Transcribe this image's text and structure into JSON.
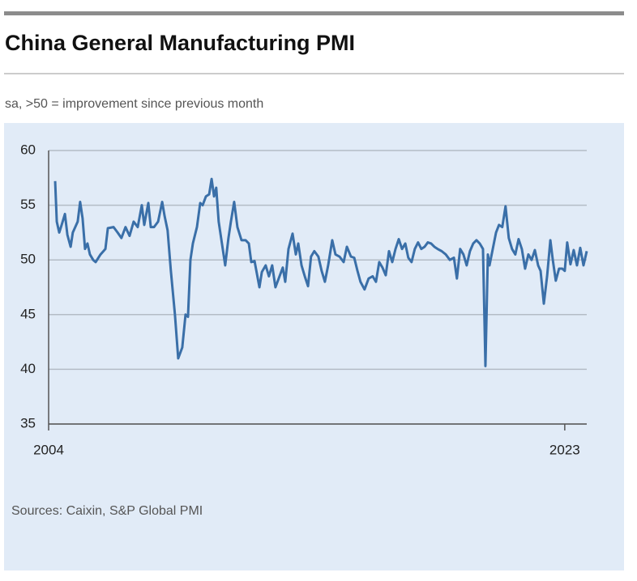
{
  "chart_data": {
    "type": "line",
    "title": "China General Manufacturing PMI",
    "subtitle": "sa, >50 = improvement since previous month",
    "source": "Sources: Caixin, S&P Global PMI",
    "color": "#3a6fa8",
    "grid": true,
    "xlim": [
      2004,
      2023.81
    ],
    "xticks": [
      2004,
      2023
    ],
    "ylim": [
      35,
      60
    ],
    "yticks": [
      35,
      40,
      45,
      50,
      55,
      60
    ],
    "x": [
      2004.24,
      2004.3,
      2004.39,
      2004.48,
      2004.6,
      2004.69,
      2004.81,
      2004.89,
      2005.07,
      2005.16,
      2005.25,
      2005.34,
      2005.43,
      2005.52,
      2005.64,
      2005.73,
      2005.91,
      2006.09,
      2006.18,
      2006.39,
      2006.54,
      2006.68,
      2006.83,
      2006.98,
      2007.13,
      2007.28,
      2007.43,
      2007.52,
      2007.67,
      2007.76,
      2007.88,
      2008.03,
      2008.18,
      2008.27,
      2008.38,
      2008.5,
      2008.65,
      2008.77,
      2008.92,
      2009.04,
      2009.13,
      2009.22,
      2009.31,
      2009.46,
      2009.58,
      2009.67,
      2009.79,
      2009.91,
      2010.0,
      2010.09,
      2010.17,
      2010.26,
      2010.38,
      2010.5,
      2010.62,
      2010.71,
      2010.83,
      2010.95,
      2011.1,
      2011.25,
      2011.37,
      2011.46,
      2011.58,
      2011.76,
      2011.85,
      2011.99,
      2012.11,
      2012.23,
      2012.35,
      2012.5,
      2012.62,
      2012.71,
      2012.83,
      2012.98,
      2013.1,
      2013.19,
      2013.31,
      2013.43,
      2013.55,
      2013.66,
      2013.78,
      2013.93,
      2014.05,
      2014.17,
      2014.29,
      2014.44,
      2014.56,
      2014.71,
      2014.86,
      2014.98,
      2015.13,
      2015.25,
      2015.37,
      2015.48,
      2015.63,
      2015.78,
      2015.93,
      2016.05,
      2016.17,
      2016.29,
      2016.41,
      2016.53,
      2016.65,
      2016.77,
      2016.89,
      2017.01,
      2017.13,
      2017.24,
      2017.36,
      2017.48,
      2017.6,
      2017.72,
      2017.84,
      2017.96,
      2018.08,
      2018.2,
      2018.32,
      2018.47,
      2018.62,
      2018.77,
      2018.92,
      2019.03,
      2019.15,
      2019.27,
      2019.39,
      2019.51,
      2019.63,
      2019.75,
      2019.87,
      2019.99,
      2020.08,
      2020.17,
      2020.23,
      2020.35,
      2020.47,
      2020.58,
      2020.7,
      2020.82,
      2020.94,
      2021.06,
      2021.18,
      2021.3,
      2021.42,
      2021.54,
      2021.66,
      2021.78,
      2021.9,
      2022.02,
      2022.11,
      2022.23,
      2022.35,
      2022.47,
      2022.56,
      2022.67,
      2022.79,
      2022.91,
      2023.0,
      2023.09,
      2023.21,
      2023.33,
      2023.45,
      2023.57,
      2023.69,
      2023.81
    ],
    "values": [
      57.2,
      53.5,
      52.5,
      53.2,
      54.2,
      52.3,
      51.2,
      52.5,
      53.5,
      55.3,
      53.8,
      51.0,
      51.5,
      50.5,
      50.0,
      49.8,
      50.5,
      51.0,
      52.9,
      53.0,
      52.5,
      52.0,
      53.0,
      52.2,
      53.5,
      53.0,
      55.0,
      53.2,
      55.2,
      53.0,
      53.0,
      53.5,
      55.3,
      54.0,
      52.7,
      49.0,
      45.0,
      41.0,
      42.0,
      45.0,
      44.8,
      50.0,
      51.5,
      53.0,
      55.2,
      55.0,
      55.8,
      56.0,
      57.4,
      55.8,
      56.6,
      53.5,
      51.5,
      49.5,
      52.0,
      53.5,
      55.3,
      53.0,
      51.8,
      51.8,
      51.5,
      49.8,
      49.9,
      47.5,
      48.9,
      49.5,
      48.5,
      49.5,
      47.5,
      48.5,
      49.3,
      48.0,
      51.0,
      52.4,
      50.5,
      51.5,
      49.5,
      48.5,
      47.6,
      50.3,
      50.8,
      50.3,
      49.0,
      48.0,
      49.5,
      51.8,
      50.5,
      50.3,
      49.8,
      51.2,
      50.3,
      50.2,
      49.0,
      48.0,
      47.3,
      48.3,
      48.5,
      48.0,
      49.8,
      49.3,
      48.6,
      50.8,
      49.8,
      51.0,
      51.9,
      51.0,
      51.5,
      50.2,
      49.8,
      51.0,
      51.6,
      51.0,
      51.2,
      51.6,
      51.5,
      51.2,
      51.0,
      50.8,
      50.5,
      50.0,
      50.2,
      48.3,
      51.0,
      50.5,
      49.5,
      50.8,
      51.5,
      51.8,
      51.5,
      51.0,
      40.3,
      50.5,
      49.5,
      51.0,
      52.5,
      53.2,
      53.0,
      54.9,
      52.0,
      51.0,
      50.5,
      51.9,
      51.0,
      49.2,
      50.5,
      50.0,
      50.9,
      49.5,
      49.0,
      46.0,
      48.5,
      51.8,
      50.0,
      48.1,
      49.2,
      49.2,
      49.0,
      51.6,
      49.6,
      50.9,
      49.5,
      51.1,
      49.5,
      50.8
    ]
  }
}
